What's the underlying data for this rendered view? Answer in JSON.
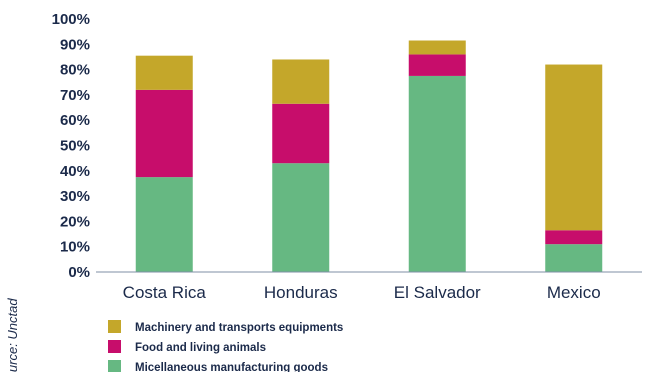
{
  "chart_data": {
    "type": "bar",
    "stacked": true,
    "categories": [
      "Costa Rica",
      "Honduras",
      "El Salvador",
      "Mexico"
    ],
    "series": [
      {
        "name": "Micellaneous manufacturing goods",
        "color": "#66b882",
        "values": [
          37.5,
          43,
          77.5,
          11
        ]
      },
      {
        "name": "Food and living animals",
        "color": "#c70d6b",
        "values": [
          34.5,
          23.5,
          8.5,
          5.5
        ]
      },
      {
        "name": "Machinery and transports equipments",
        "color": "#c4a72a",
        "values": [
          13.5,
          17.5,
          5.5,
          65.5
        ]
      }
    ],
    "y_ticks": [
      "0%",
      "10%",
      "20%",
      "30%",
      "40%",
      "50%",
      "60%",
      "70%",
      "80%",
      "90%",
      "100%"
    ],
    "ylim": [
      0,
      100
    ],
    "legend_order": [
      2,
      1,
      0
    ],
    "legend_position": "bottom-left",
    "grid": false,
    "title": "",
    "xlabel": "",
    "ylabel": ""
  },
  "source_note": "Source: Unctad"
}
